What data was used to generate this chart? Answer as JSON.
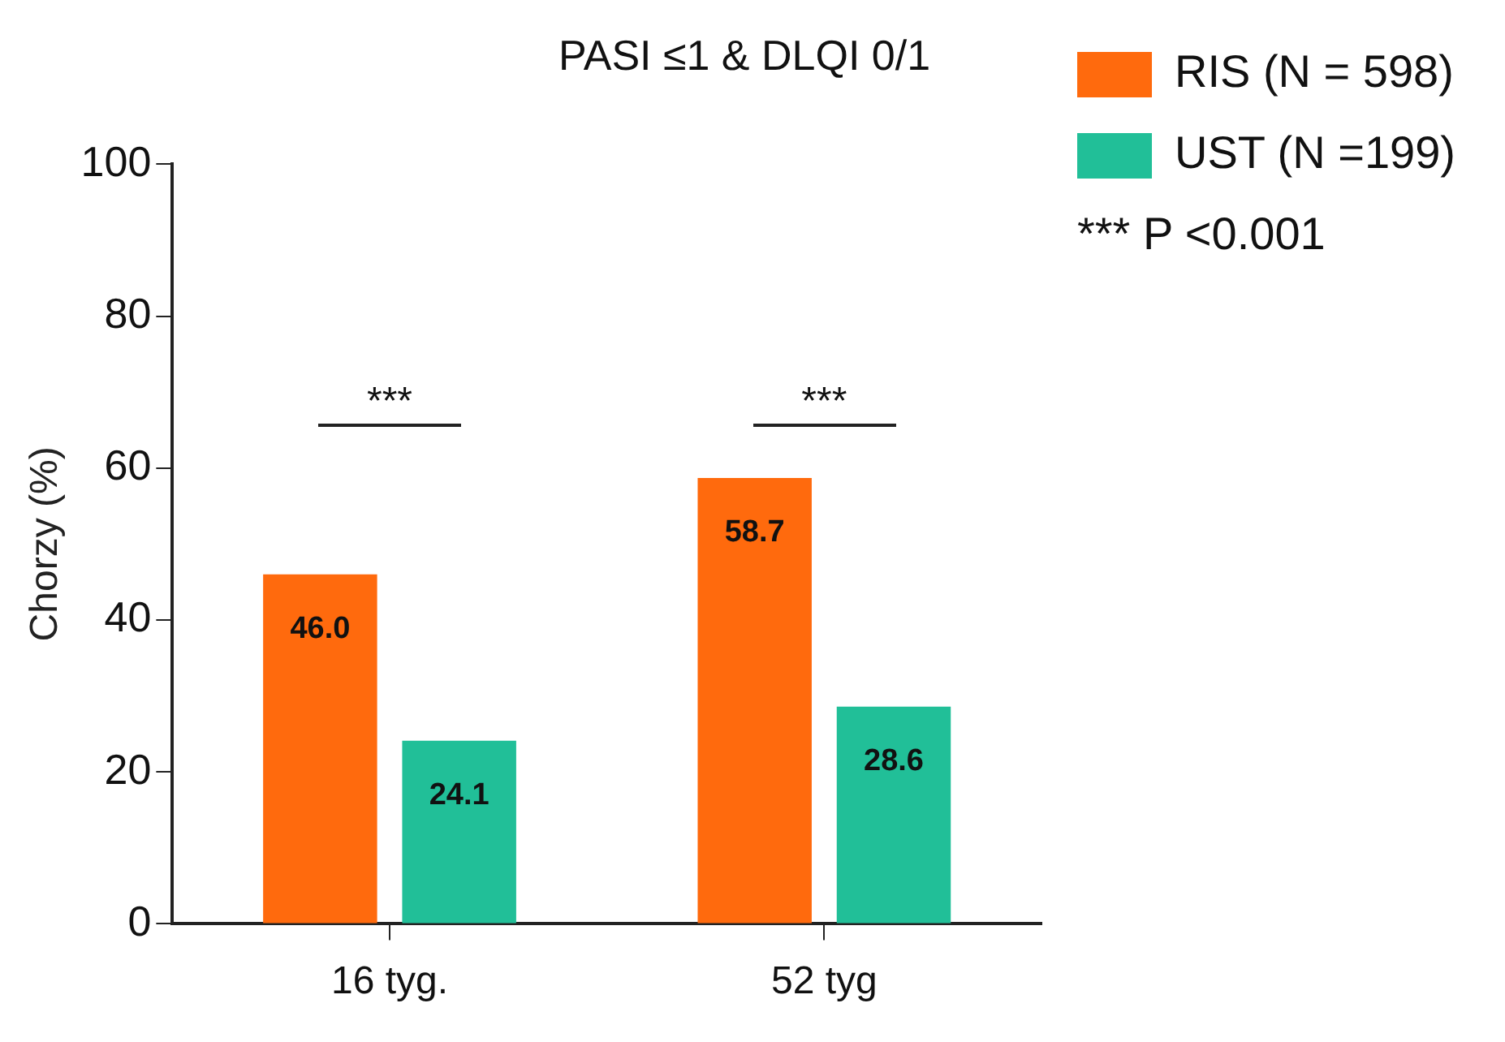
{
  "chart_data": {
    "type": "bar",
    "title": "PASI ≤1 & DLQI 0/1",
    "ylabel": "Chorzy (%)",
    "categories": [
      "16 tyg.",
      "52 tyg"
    ],
    "series": [
      {
        "name": "RIS (N = 598)",
        "color": "#ff6a0d",
        "values": [
          46.0,
          58.7
        ],
        "value_labels": [
          "46.0",
          "58.7"
        ]
      },
      {
        "name": "UST (N =199)",
        "color": "#21bf98",
        "values": [
          24.1,
          28.6
        ],
        "value_labels": [
          "24.1",
          "28.6"
        ]
      }
    ],
    "ylim": [
      0,
      100
    ],
    "yticks": [
      0,
      20,
      40,
      60,
      80,
      100
    ],
    "grid": false,
    "legend": "top right",
    "annotations": [
      "***",
      "***",
      "*** P <0.001"
    ]
  }
}
